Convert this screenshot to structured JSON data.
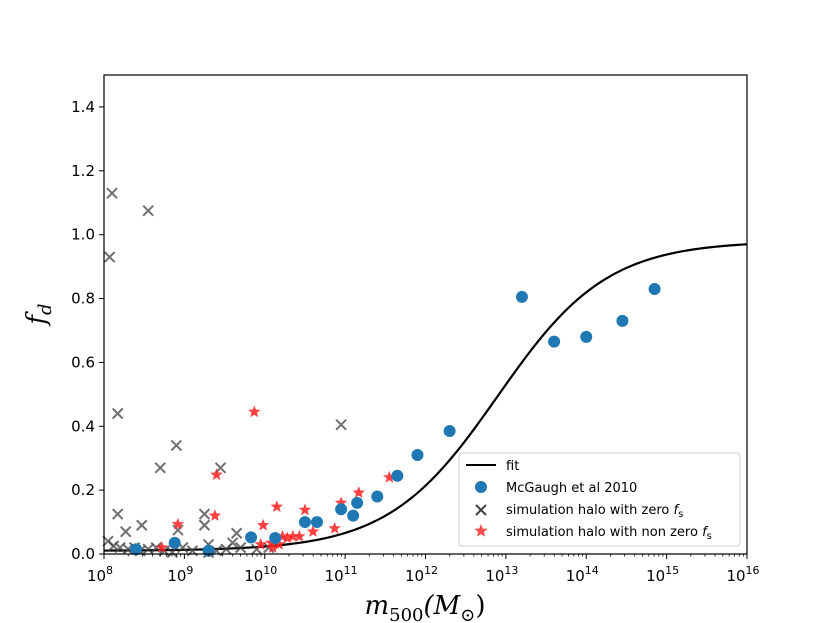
{
  "chart_data": {
    "type": "scatter",
    "xscale": "log",
    "xlim_exp": [
      8,
      16
    ],
    "ylim": [
      0,
      1.5
    ],
    "xlabel": {
      "main": "m",
      "sub": "500",
      "unit_open": "(M",
      "unit_sub": "⊙",
      "unit_close": ")"
    },
    "ylabel": {
      "main": "f",
      "sub": "d"
    },
    "xticks": [
      {
        "base": "10",
        "exp": "8",
        "value_exp": 8
      },
      {
        "base": "10",
        "exp": "9",
        "value_exp": 9
      },
      {
        "base": "10",
        "exp": "10",
        "value_exp": 10
      },
      {
        "base": "10",
        "exp": "11",
        "value_exp": 11
      },
      {
        "base": "10",
        "exp": "12",
        "value_exp": 12
      },
      {
        "base": "10",
        "exp": "13",
        "value_exp": 13
      },
      {
        "base": "10",
        "exp": "14",
        "value_exp": 14
      },
      {
        "base": "10",
        "exp": "15",
        "value_exp": 15
      },
      {
        "base": "10",
        "exp": "16",
        "value_exp": 16
      }
    ],
    "yticks": [
      {
        "label": "0.0",
        "value": 0.0
      },
      {
        "label": "0.2",
        "value": 0.2
      },
      {
        "label": "0.4",
        "value": 0.4
      },
      {
        "label": "0.6",
        "value": 0.6
      },
      {
        "label": "0.8",
        "value": 0.8
      },
      {
        "label": "1.0",
        "value": 1.0
      },
      {
        "label": "1.2",
        "value": 1.2
      },
      {
        "label": "1.4",
        "value": 1.4
      }
    ],
    "legend": {
      "position": "lower-right",
      "entries": [
        {
          "label": "fit",
          "marker": "line"
        },
        {
          "label": "McGaugh et al 2010",
          "marker": "circle"
        },
        {
          "label": "simulation halo with zero ",
          "label_var": "f",
          "label_sub": "s",
          "marker": "x"
        },
        {
          "label": "simulation halo with non zero ",
          "label_var": "f",
          "label_sub": "s",
          "marker": "star"
        }
      ]
    },
    "series": [
      {
        "name": "fit",
        "kind": "line",
        "color": "#000000",
        "curve": {
          "y_low": 0.01,
          "y_high": 0.98,
          "center_log_mass": 12.9,
          "width_dex": 0.68
        }
      },
      {
        "name": "McGaugh et al 2010",
        "kind": "circle",
        "color": "#1f77b4",
        "points": [
          [
            8.4,
            0.015
          ],
          [
            8.88,
            0.035
          ],
          [
            9.3,
            0.01
          ],
          [
            9.83,
            0.052
          ],
          [
            10.13,
            0.05
          ],
          [
            10.5,
            0.1
          ],
          [
            10.65,
            0.1
          ],
          [
            10.95,
            0.14
          ],
          [
            11.1,
            0.12
          ],
          [
            11.15,
            0.16
          ],
          [
            11.4,
            0.18
          ],
          [
            11.65,
            0.245
          ],
          [
            11.9,
            0.31
          ],
          [
            12.3,
            0.385
          ],
          [
            13.2,
            0.805
          ],
          [
            13.6,
            0.665
          ],
          [
            14.0,
            0.68
          ],
          [
            14.45,
            0.73
          ],
          [
            14.85,
            0.83
          ]
        ]
      },
      {
        "name": "simulation halo with zero fs",
        "kind": "x",
        "color": "#404040",
        "points": [
          [
            8.07,
            0.93
          ],
          [
            8.1,
            1.13
          ],
          [
            8.55,
            1.075
          ],
          [
            8.17,
            0.44
          ],
          [
            8.9,
            0.34
          ],
          [
            8.7,
            0.27
          ],
          [
            9.45,
            0.27
          ],
          [
            8.17,
            0.125
          ],
          [
            9.25,
            0.125
          ],
          [
            10.95,
            0.405
          ],
          [
            8.27,
            0.07
          ],
          [
            8.47,
            0.09
          ],
          [
            9.25,
            0.09
          ],
          [
            8.92,
            0.075
          ],
          [
            9.65,
            0.065
          ],
          [
            8.05,
            0.04
          ],
          [
            8.12,
            0.025
          ],
          [
            8.2,
            0.02
          ],
          [
            8.3,
            0.015
          ],
          [
            8.38,
            0.02
          ],
          [
            8.45,
            0.01
          ],
          [
            8.55,
            0.015
          ],
          [
            8.65,
            0.02
          ],
          [
            8.75,
            0.01
          ],
          [
            8.85,
            0.005
          ],
          [
            8.98,
            0.02
          ],
          [
            9.1,
            0.01
          ],
          [
            9.3,
            0.005
          ],
          [
            9.4,
            0.01
          ],
          [
            9.52,
            0.015
          ],
          [
            9.6,
            0.035
          ],
          [
            9.7,
            0.02
          ],
          [
            9.9,
            0.015
          ],
          [
            10.05,
            0.02
          ],
          [
            9.3,
            0.03
          ]
        ]
      },
      {
        "name": "simulation halo with non zero fs",
        "kind": "star",
        "color": "#ff2020",
        "points": [
          [
            9.87,
            0.445
          ],
          [
            9.4,
            0.248
          ],
          [
            9.38,
            0.12
          ],
          [
            8.92,
            0.093
          ],
          [
            9.98,
            0.09
          ],
          [
            10.15,
            0.148
          ],
          [
            10.5,
            0.138
          ],
          [
            11.17,
            0.192
          ],
          [
            11.55,
            0.24
          ],
          [
            10.87,
            0.08
          ],
          [
            10.6,
            0.07
          ],
          [
            10.35,
            0.055
          ],
          [
            10.28,
            0.05
          ],
          [
            10.22,
            0.055
          ],
          [
            10.43,
            0.055
          ],
          [
            10.18,
            0.03
          ],
          [
            10.08,
            0.035
          ],
          [
            9.95,
            0.03
          ],
          [
            10.1,
            0.02
          ],
          [
            8.72,
            0.02
          ],
          [
            10.95,
            0.16
          ]
        ]
      }
    ]
  }
}
